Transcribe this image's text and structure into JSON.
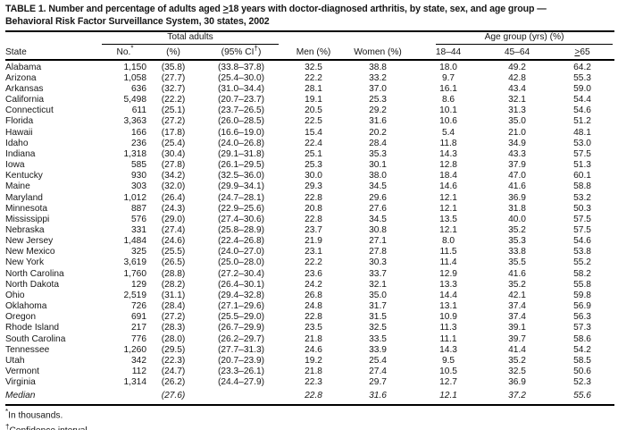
{
  "title": {
    "line1_pre": "TABLE 1. Number and percentage of adults aged ",
    "line1_geq": ">",
    "line1_post": "18 years with doctor-diagnosed arthritis, by state, sex, and age group —",
    "line2": "Behavioral Risk Factor Surveillance System, 30 states, 2002"
  },
  "table": {
    "group_headers": {
      "total_adults": "Total adults",
      "age_group": "Age group (yrs) (%)"
    },
    "columns": {
      "state": "State",
      "no_label": "No.",
      "no_marker": "*",
      "pct": "(%)",
      "ci_pre": "(95% CI",
      "ci_marker": "†",
      "ci_post": ")",
      "men": "Men (%)",
      "women": "Women (%)",
      "age_18_44": "18–44",
      "age_45_64": "45–64",
      "age_65_geq": ">",
      "age_65_rest": "65"
    },
    "rows": [
      {
        "state": "Alabama",
        "no": "1,150",
        "pct": "(35.8)",
        "ci": "(33.8–37.8)",
        "men": "32.5",
        "women": "38.8",
        "a18": "18.0",
        "a45": "49.2",
        "a65": "64.2"
      },
      {
        "state": "Arizona",
        "no": "1,058",
        "pct": "(27.7)",
        "ci": "(25.4–30.0)",
        "men": "22.2",
        "women": "33.2",
        "a18": "9.7",
        "a45": "42.8",
        "a65": "55.3"
      },
      {
        "state": "Arkansas",
        "no": "636",
        "pct": "(32.7)",
        "ci": "(31.0–34.4)",
        "men": "28.1",
        "women": "37.0",
        "a18": "16.1",
        "a45": "43.4",
        "a65": "59.0"
      },
      {
        "state": "California",
        "no": "5,498",
        "pct": "(22.2)",
        "ci": "(20.7–23.7)",
        "men": "19.1",
        "women": "25.3",
        "a18": "8.6",
        "a45": "32.1",
        "a65": "54.4"
      },
      {
        "state": "Connecticut",
        "no": "611",
        "pct": "(25.1)",
        "ci": "(23.7–26.5)",
        "men": "20.5",
        "women": "29.2",
        "a18": "10.1",
        "a45": "31.3",
        "a65": "54.6"
      },
      {
        "state": "Florida",
        "no": "3,363",
        "pct": "(27.2)",
        "ci": "(26.0–28.5)",
        "men": "22.5",
        "women": "31.6",
        "a18": "10.6",
        "a45": "35.0",
        "a65": "51.2"
      },
      {
        "state": "Hawaii",
        "no": "166",
        "pct": "(17.8)",
        "ci": "(16.6–19.0)",
        "men": "15.4",
        "women": "20.2",
        "a18": "5.4",
        "a45": "21.0",
        "a65": "48.1"
      },
      {
        "state": "Idaho",
        "no": "236",
        "pct": "(25.4)",
        "ci": "(24.0–26.8)",
        "men": "22.4",
        "women": "28.4",
        "a18": "11.8",
        "a45": "34.9",
        "a65": "53.0"
      },
      {
        "state": "Indiana",
        "no": "1,318",
        "pct": "(30.4)",
        "ci": "(29.1–31.8)",
        "men": "25.1",
        "women": "35.3",
        "a18": "14.3",
        "a45": "43.3",
        "a65": "57.5"
      },
      {
        "state": "Iowa",
        "no": "585",
        "pct": "(27.8)",
        "ci": "(26.1–29.5)",
        "men": "25.3",
        "women": "30.1",
        "a18": "12.8",
        "a45": "37.9",
        "a65": "51.3"
      },
      {
        "state": "Kentucky",
        "no": "930",
        "pct": "(34.2)",
        "ci": "(32.5–36.0)",
        "men": "30.0",
        "women": "38.0",
        "a18": "18.4",
        "a45": "47.0",
        "a65": "60.1"
      },
      {
        "state": "Maine",
        "no": "303",
        "pct": "(32.0)",
        "ci": "(29.9–34.1)",
        "men": "29.3",
        "women": "34.5",
        "a18": "14.6",
        "a45": "41.6",
        "a65": "58.8"
      },
      {
        "state": "Maryland",
        "no": "1,012",
        "pct": "(26.4)",
        "ci": "(24.7–28.1)",
        "men": "22.8",
        "women": "29.6",
        "a18": "12.1",
        "a45": "36.9",
        "a65": "53.2"
      },
      {
        "state": "Minnesota",
        "no": "887",
        "pct": "(24.3)",
        "ci": "(22.9–25.6)",
        "men": "20.8",
        "women": "27.6",
        "a18": "12.1",
        "a45": "31.8",
        "a65": "50.3"
      },
      {
        "state": "Mississippi",
        "no": "576",
        "pct": "(29.0)",
        "ci": "(27.4–30.6)",
        "men": "22.8",
        "women": "34.5",
        "a18": "13.5",
        "a45": "40.0",
        "a65": "57.5"
      },
      {
        "state": "Nebraska",
        "no": "331",
        "pct": "(27.4)",
        "ci": "(25.8–28.9)",
        "men": "23.7",
        "women": "30.8",
        "a18": "12.1",
        "a45": "35.2",
        "a65": "57.5"
      },
      {
        "state": "New Jersey",
        "no": "1,484",
        "pct": "(24.6)",
        "ci": "(22.4–26.8)",
        "men": "21.9",
        "women": "27.1",
        "a18": "8.0",
        "a45": "35.3",
        "a65": "54.6"
      },
      {
        "state": "New Mexico",
        "no": "325",
        "pct": "(25.5)",
        "ci": "(24.0–27.0)",
        "men": "23.1",
        "women": "27.8",
        "a18": "11.5",
        "a45": "33.8",
        "a65": "53.8"
      },
      {
        "state": "New York",
        "no": "3,619",
        "pct": "(26.5)",
        "ci": "(25.0–28.0)",
        "men": "22.2",
        "women": "30.3",
        "a18": "11.4",
        "a45": "35.5",
        "a65": "55.2"
      },
      {
        "state": "North Carolina",
        "no": "1,760",
        "pct": "(28.8)",
        "ci": "(27.2–30.4)",
        "men": "23.6",
        "women": "33.7",
        "a18": "12.9",
        "a45": "41.6",
        "a65": "58.2"
      },
      {
        "state": "North Dakota",
        "no": "129",
        "pct": "(28.2)",
        "ci": "(26.4–30.1)",
        "men": "24.2",
        "women": "32.1",
        "a18": "13.3",
        "a45": "35.2",
        "a65": "55.8"
      },
      {
        "state": "Ohio",
        "no": "2,519",
        "pct": "(31.1)",
        "ci": "(29.4–32.8)",
        "men": "26.8",
        "women": "35.0",
        "a18": "14.4",
        "a45": "42.1",
        "a65": "59.8"
      },
      {
        "state": "Oklahoma",
        "no": "726",
        "pct": "(28.4)",
        "ci": "(27.1–29.6)",
        "men": "24.8",
        "women": "31.7",
        "a18": "13.1",
        "a45": "37.4",
        "a65": "56.9"
      },
      {
        "state": "Oregon",
        "no": "691",
        "pct": "(27.2)",
        "ci": "(25.5–29.0)",
        "men": "22.8",
        "women": "31.5",
        "a18": "10.9",
        "a45": "37.4",
        "a65": "56.3"
      },
      {
        "state": "Rhode Island",
        "no": "217",
        "pct": "(28.3)",
        "ci": "(26.7–29.9)",
        "men": "23.5",
        "women": "32.5",
        "a18": "11.3",
        "a45": "39.1",
        "a65": "57.3"
      },
      {
        "state": "South Carolina",
        "no": "776",
        "pct": "(28.0)",
        "ci": "(26.2–29.7)",
        "men": "21.8",
        "women": "33.5",
        "a18": "11.1",
        "a45": "39.7",
        "a65": "58.6"
      },
      {
        "state": "Tennessee",
        "no": "1,260",
        "pct": "(29.5)",
        "ci": "(27.7–31.3)",
        "men": "24.6",
        "women": "33.9",
        "a18": "14.3",
        "a45": "41.4",
        "a65": "54.2"
      },
      {
        "state": "Utah",
        "no": "342",
        "pct": "(22.3)",
        "ci": "(20.7–23.9)",
        "men": "19.2",
        "women": "25.4",
        "a18": "9.5",
        "a45": "35.2",
        "a65": "58.5"
      },
      {
        "state": "Vermont",
        "no": "112",
        "pct": "(24.7)",
        "ci": "(23.3–26.1)",
        "men": "21.8",
        "women": "27.4",
        "a18": "10.5",
        "a45": "32.5",
        "a65": "50.6"
      },
      {
        "state": "Virginia",
        "no": "1,314",
        "pct": "(26.2)",
        "ci": "(24.4–27.9)",
        "men": "22.3",
        "women": "29.7",
        "a18": "12.7",
        "a45": "36.9",
        "a65": "52.3"
      }
    ],
    "median": {
      "state": "Median",
      "pct": "(27.6)",
      "men": "22.8",
      "women": "31.6",
      "a18": "12.1",
      "a45": "37.2",
      "a65": "55.6"
    }
  },
  "footnotes": [
    {
      "marker": "*",
      "text": "In thousands."
    },
    {
      "marker": "†",
      "text": "Confidence interval."
    }
  ]
}
